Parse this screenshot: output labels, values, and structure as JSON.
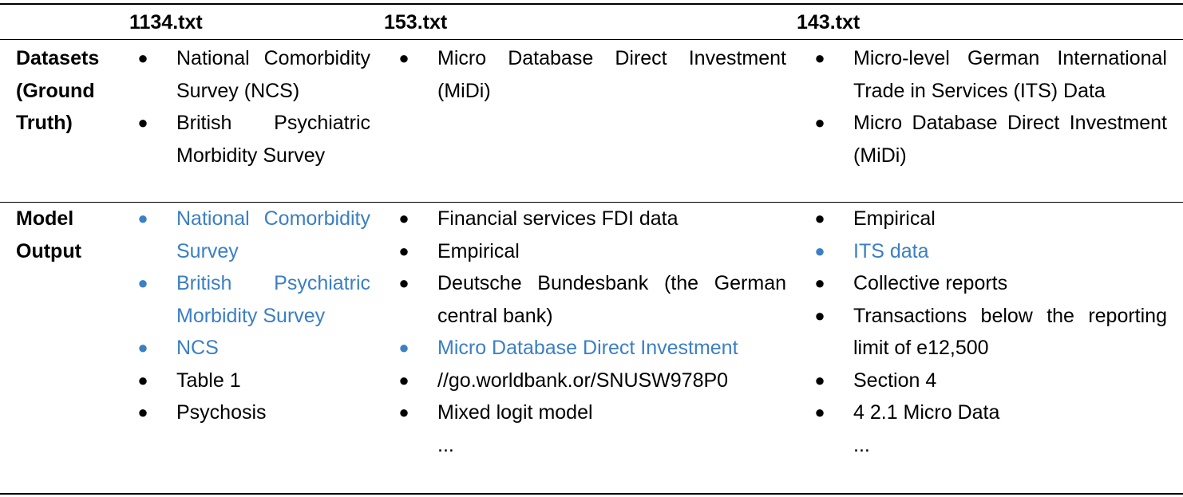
{
  "headers": {
    "col1": "1134.txt",
    "col2": "153.txt",
    "col3": "143.txt"
  },
  "rows": {
    "ground_truth": {
      "label": "Datasets (Ground Truth)",
      "col1": [
        {
          "text": "National Comorbidity Survey (NCS)",
          "highlight": false
        },
        {
          "text": "British Psychiatric Morbidity Survey",
          "highlight": false
        }
      ],
      "col2": [
        {
          "text": "Micro Database Direct Investment (MiDi)",
          "highlight": false
        }
      ],
      "col3": [
        {
          "text": "Micro-level German International Trade in Services (ITS) Data",
          "highlight": false
        },
        {
          "text": "Micro Database Direct Investment (MiDi)",
          "highlight": false
        }
      ]
    },
    "model_output": {
      "label": "Model Output",
      "col1": [
        {
          "text": "National Comorbidity Survey",
          "highlight": true
        },
        {
          "text": "British Psychiatric Morbidity Survey",
          "highlight": true
        },
        {
          "text": "NCS",
          "highlight": true
        },
        {
          "text": "Table 1",
          "highlight": false
        },
        {
          "text": "Psychosis",
          "highlight": false
        }
      ],
      "col2": [
        {
          "text": "Financial services FDI data",
          "highlight": false
        },
        {
          "text": "Empirical",
          "highlight": false
        },
        {
          "text": "Deutsche Bundesbank (the German central bank)",
          "highlight": false
        },
        {
          "text": "Micro Database Direct Investment",
          "highlight": true
        },
        {
          "text": "//go.worldbank.or/SNUSW978P0",
          "highlight": false
        },
        {
          "text": "Mixed logit model",
          "highlight": false
        }
      ],
      "col2_more": "...",
      "col3": [
        {
          "text": "Empirical",
          "highlight": false
        },
        {
          "text": "ITS data",
          "highlight": true
        },
        {
          "text": "Collective reports",
          "highlight": false
        },
        {
          "text": "Transactions below the reporting limit of e12,500",
          "highlight": false
        },
        {
          "text": "Section 4",
          "highlight": false
        },
        {
          "text": "4 2.1 Micro Data",
          "highlight": false
        }
      ],
      "col3_more": "..."
    }
  },
  "colors": {
    "highlight": "#3b7fc4",
    "text": "#000000"
  },
  "bullet_symbol": "●"
}
